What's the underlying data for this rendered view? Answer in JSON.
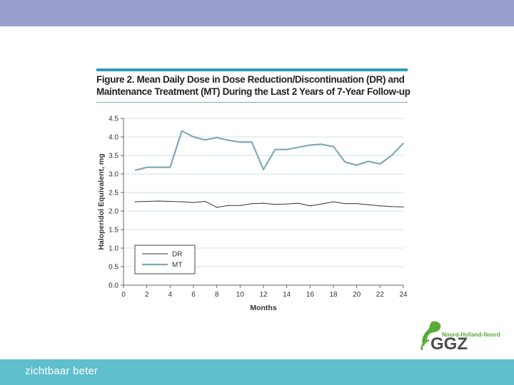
{
  "slide": {
    "tagline": "zichtbaar beter",
    "logo": {
      "sub": "Noord-Holland-Noord",
      "main": "GGZ"
    },
    "colors": {
      "top_band": "#9aa0cd",
      "bottom_band": "#5fbfca",
      "accent": "#2d9bb8"
    }
  },
  "figure": {
    "title_line1": "Figure 2. Mean Daily Dose in Dose Reduction/Discontinuation (DR) and",
    "title_line2": "Maintenance Treatment (MT) During the Last 2 Years of 7-Year Follow-up"
  },
  "chart_data": {
    "type": "line",
    "title": "Figure 2. Mean Daily Dose in Dose Reduction/Discontinuation (DR) and Maintenance Treatment (MT) During the Last 2 Years of 7-Year Follow-up",
    "xlabel": "Months",
    "ylabel": "Haloperidol Equivalent, mg",
    "xlim": [
      0,
      24
    ],
    "ylim": [
      0,
      4.5
    ],
    "xticks": [
      0,
      2,
      4,
      6,
      8,
      10,
      12,
      14,
      16,
      18,
      20,
      22,
      24
    ],
    "yticks": [
      "0.0",
      "0.5",
      "1.0",
      "1.5",
      "2.0",
      "2.5",
      "3.0",
      "3.5",
      "4.0",
      "4.5"
    ],
    "grid": "horizontal",
    "legend_position": "bottom-left",
    "x": [
      1,
      2,
      3,
      4,
      5,
      6,
      7,
      8,
      9,
      10,
      11,
      12,
      13,
      14,
      15,
      16,
      17,
      18,
      19,
      20,
      21,
      22,
      23,
      24
    ],
    "series": [
      {
        "name": "DR",
        "color": "#333333",
        "values": [
          2.25,
          2.26,
          2.27,
          2.26,
          2.25,
          2.23,
          2.26,
          2.1,
          2.15,
          2.15,
          2.2,
          2.21,
          2.18,
          2.19,
          2.21,
          2.14,
          2.19,
          2.25,
          2.2,
          2.2,
          2.17,
          2.14,
          2.12,
          2.11
        ]
      },
      {
        "name": "MT",
        "color": "#7fa9b5",
        "values": [
          3.1,
          3.18,
          3.18,
          3.18,
          4.16,
          4.0,
          3.92,
          3.98,
          3.91,
          3.86,
          3.86,
          3.12,
          3.66,
          3.66,
          3.72,
          3.78,
          3.8,
          3.74,
          3.32,
          3.24,
          3.34,
          3.27,
          3.5,
          3.83
        ]
      }
    ]
  }
}
